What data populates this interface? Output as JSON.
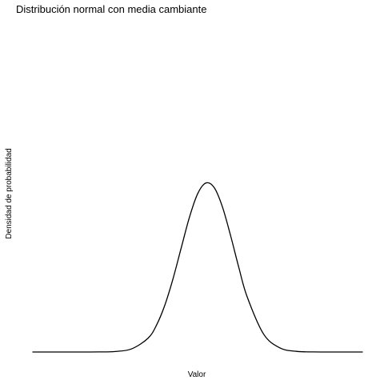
{
  "chart_data": {
    "type": "line",
    "title": "Distribución normal con media cambiante",
    "xlabel": "Valor",
    "ylabel": "Densidad de probabilidad",
    "grid": false,
    "legend": "none",
    "axes_ticks_visible": false,
    "xlim": [
      -5,
      5
    ],
    "ylim": [
      0,
      0.44
    ],
    "series": [
      {
        "color": "#000000",
        "x": [
          -5,
          -4.5,
          -4,
          -3.5,
          -3,
          -2.5,
          -2,
          -1.5,
          -1.25,
          -1,
          -0.75,
          -0.5,
          -0.25,
          0,
          0.25,
          0.5,
          0.75,
          1,
          1.25,
          1.5,
          2,
          2.5,
          3,
          3.5,
          4,
          4.5,
          5
        ],
        "y": [
          0.0,
          0.0,
          0.0,
          0.0,
          0.0001,
          0.0007,
          0.0043,
          0.0189,
          0.0362,
          0.0629,
          0.0988,
          0.1409,
          0.1826,
          0.2148,
          0.2295,
          0.2235,
          0.1975,
          0.1582,
          0.1149,
          0.0754,
          0.0245,
          0.0055,
          0.0009,
          0.0001,
          0.0,
          0.0,
          0.0
        ]
      }
    ]
  }
}
